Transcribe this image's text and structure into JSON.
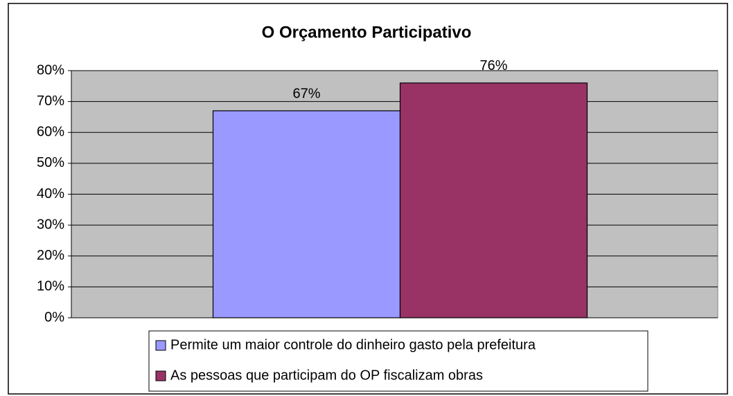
{
  "chart_data": {
    "type": "bar",
    "title": "O Orçamento Participativo",
    "categories": [
      null
    ],
    "series": [
      {
        "name": "Permite um maior controle do dinheiro gasto pela prefeitura",
        "color": "#9999ff",
        "values": [
          67
        ],
        "value_labels": [
          "67%"
        ]
      },
      {
        "name": "As pessoas que participam do OP fiscalizam obras",
        "color": "#993366",
        "values": [
          76
        ],
        "value_labels": [
          "76%"
        ]
      }
    ],
    "ylim": [
      0,
      80
    ],
    "yticks": [
      {
        "value": 0,
        "label": "0%"
      },
      {
        "value": 10,
        "label": "10%"
      },
      {
        "value": 20,
        "label": "20%"
      },
      {
        "value": 30,
        "label": "30%"
      },
      {
        "value": 40,
        "label": "40%"
      },
      {
        "value": 50,
        "label": "50%"
      },
      {
        "value": 60,
        "label": "60%"
      },
      {
        "value": 70,
        "label": "70%"
      },
      {
        "value": 80,
        "label": "80%"
      }
    ],
    "grid": true,
    "plot_background": "#c0c0c0",
    "legend": "bottom"
  }
}
